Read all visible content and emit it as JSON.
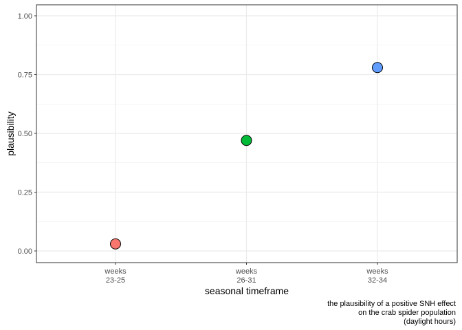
{
  "chart_data": {
    "type": "scatter",
    "title": "",
    "xlabel": "seasonal timeframe",
    "ylabel": "plausibility",
    "categories": [
      [
        "weeks",
        "23-25"
      ],
      [
        "weeks",
        "26-31"
      ],
      [
        "weeks",
        "32-34"
      ]
    ],
    "values": [
      0.03,
      0.47,
      0.78
    ],
    "point_colors": [
      "#F8766D",
      "#00BA38",
      "#619CFF"
    ],
    "ylim": [
      0,
      1
    ],
    "yticks": [
      0,
      0.25,
      0.5,
      0.75,
      1
    ],
    "ytick_labels": [
      "0.00",
      "0.25",
      "0.50",
      "0.75",
      "1.00"
    ],
    "caption": [
      "the plausibility of a positive SNH effect",
      "on the crab spider population",
      "(daylight hours)"
    ],
    "grid": true,
    "legend": "none"
  }
}
